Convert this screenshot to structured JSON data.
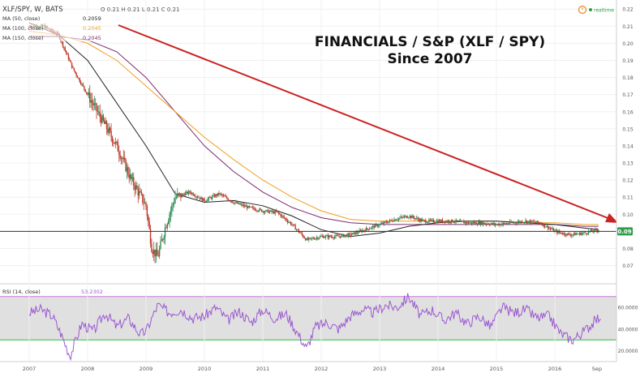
{
  "header": {
    "symbol": "XLF/SPY, W, BATS",
    "ohlc": "O 0.21 H 0.21 L 0.21 C 0.21",
    "status": "realtime"
  },
  "legend": [
    {
      "label": "MA (50, close)",
      "value": "0.2059",
      "color": "#222222"
    },
    {
      "label": "MA (100, close)",
      "value": "0.2045",
      "color": "#f0a020"
    },
    {
      "label": "MA (150, close)",
      "value": "0.2045",
      "color": "#7a2a70"
    }
  ],
  "annotation": {
    "title_line1": "FINANCIALS / S&P (XLF / SPY)",
    "title_line2": "Since 2007"
  },
  "rsi": {
    "label": "RSI (14, close)",
    "value": "53.2302",
    "ticks": [
      "60.0000",
      "40.0000",
      "20.0000"
    ]
  },
  "colors": {
    "candle_up": "#2e8b57",
    "candle_down": "#c0392b",
    "arrow": "#cc2222",
    "rsi_line": "#9b59d0",
    "rsi_band": "#e0e0e0",
    "rsi_upper": "#c57ad6",
    "rsi_lower": "#39b54a",
    "last_price": "#2e9e4a",
    "ma50": "#222222",
    "ma100": "#f0a020",
    "ma150": "#7a2a70"
  },
  "chart_data": {
    "type": "line",
    "price_axis": {
      "ticks": [
        0.22,
        0.21,
        0.2,
        0.19,
        0.18,
        0.17,
        0.16,
        0.15,
        0.14,
        0.13,
        0.12,
        0.11,
        0.1,
        0.09,
        0.08,
        0.07
      ],
      "last_value": "0.09",
      "ylim": [
        0.066,
        0.222
      ]
    },
    "x_ticks": [
      "2007",
      "2008",
      "2009",
      "2010",
      "2011",
      "2012",
      "2013",
      "2014",
      "2015",
      "2016",
      "Sep"
    ],
    "series": [
      {
        "name": "XLF/SPY, W, BATS",
        "x": [
          2007.0,
          2007.25,
          2007.5,
          2007.75,
          2008.0,
          2008.25,
          2008.5,
          2008.75,
          2009.0,
          2009.1,
          2009.2,
          2009.35,
          2009.5,
          2009.75,
          2010.0,
          2010.25,
          2010.5,
          2010.75,
          2011.0,
          2011.25,
          2011.5,
          2011.75,
          2012.0,
          2012.25,
          2012.5,
          2012.75,
          2013.0,
          2013.25,
          2013.5,
          2013.75,
          2014.0,
          2014.25,
          2014.5,
          2014.75,
          2015.0,
          2015.25,
          2015.5,
          2015.75,
          2016.0,
          2016.25,
          2016.5,
          2016.75
        ],
        "values": [
          0.21,
          0.21,
          0.205,
          0.185,
          0.17,
          0.155,
          0.14,
          0.12,
          0.105,
          0.08,
          0.075,
          0.095,
          0.11,
          0.113,
          0.108,
          0.112,
          0.107,
          0.104,
          0.102,
          0.101,
          0.094,
          0.085,
          0.087,
          0.087,
          0.088,
          0.091,
          0.094,
          0.097,
          0.099,
          0.096,
          0.096,
          0.096,
          0.095,
          0.095,
          0.094,
          0.095,
          0.096,
          0.095,
          0.09,
          0.088,
          0.089,
          0.091
        ]
      },
      {
        "name": "MA (50, close)",
        "x": [
          2007.0,
          2007.5,
          2008.0,
          2008.5,
          2009.0,
          2009.5,
          2010.0,
          2010.5,
          2011.0,
          2011.5,
          2012.0,
          2012.5,
          2013.0,
          2013.5,
          2014.0,
          2014.5,
          2015.0,
          2015.5,
          2016.0,
          2016.5,
          2016.75
        ],
        "values": [
          0.212,
          0.205,
          0.19,
          0.165,
          0.14,
          0.112,
          0.107,
          0.108,
          0.105,
          0.099,
          0.091,
          0.087,
          0.089,
          0.093,
          0.095,
          0.096,
          0.096,
          0.095,
          0.094,
          0.092,
          0.091
        ]
      },
      {
        "name": "MA (100, close)",
        "x": [
          2007.0,
          2007.5,
          2008.0,
          2008.5,
          2009.0,
          2009.5,
          2010.0,
          2010.5,
          2011.0,
          2011.5,
          2012.0,
          2012.5,
          2013.0,
          2013.5,
          2014.0,
          2014.5,
          2015.0,
          2015.5,
          2016.0,
          2016.5,
          2016.75
        ],
        "values": [
          0.207,
          0.205,
          0.2,
          0.19,
          0.175,
          0.16,
          0.145,
          0.132,
          0.12,
          0.11,
          0.102,
          0.097,
          0.096,
          0.096,
          0.096,
          0.096,
          0.096,
          0.095,
          0.095,
          0.094,
          0.094
        ]
      },
      {
        "name": "MA (150, close)",
        "x": [
          2007.0,
          2007.5,
          2008.0,
          2008.5,
          2009.0,
          2009.5,
          2010.0,
          2010.5,
          2011.0,
          2011.5,
          2012.0,
          2012.5,
          2013.0,
          2013.5,
          2014.0,
          2014.5,
          2015.0,
          2015.5,
          2016.0,
          2016.5,
          2016.75
        ],
        "values": [
          0.204,
          0.204,
          0.202,
          0.195,
          0.18,
          0.16,
          0.14,
          0.125,
          0.113,
          0.104,
          0.098,
          0.095,
          0.094,
          0.094,
          0.094,
          0.094,
          0.094,
          0.094,
          0.094,
          0.093,
          0.093
        ]
      },
      {
        "name": "RSI (14, close)",
        "x": [
          2007.0,
          2007.2,
          2007.4,
          2007.55,
          2007.7,
          2007.9,
          2008.1,
          2008.3,
          2008.5,
          2008.7,
          2008.9,
          2009.0,
          2009.2,
          2009.4,
          2009.6,
          2009.8,
          2010.0,
          2010.2,
          2010.4,
          2010.6,
          2010.8,
          2011.0,
          2011.2,
          2011.4,
          2011.6,
          2011.75,
          2011.9,
          2012.1,
          2012.3,
          2012.5,
          2012.7,
          2012.9,
          2013.1,
          2013.3,
          2013.5,
          2013.7,
          2013.9,
          2014.1,
          2014.3,
          2014.5,
          2014.7,
          2014.9,
          2015.1,
          2015.3,
          2015.5,
          2015.7,
          2015.9,
          2016.1,
          2016.3,
          2016.5,
          2016.7,
          2016.8
        ],
        "values": [
          55,
          58,
          52,
          35,
          15,
          45,
          38,
          55,
          42,
          50,
          35,
          38,
          62,
          55,
          58,
          50,
          52,
          60,
          48,
          56,
          46,
          58,
          50,
          54,
          36,
          22,
          42,
          46,
          40,
          52,
          58,
          55,
          62,
          60,
          70,
          52,
          58,
          48,
          55,
          45,
          52,
          42,
          60,
          55,
          58,
          50,
          52,
          36,
          30,
          38,
          48,
          53
        ]
      }
    ],
    "rsi_levels": [
      70,
      30
    ],
    "rsi_ylim": [
      10,
      78
    ]
  }
}
